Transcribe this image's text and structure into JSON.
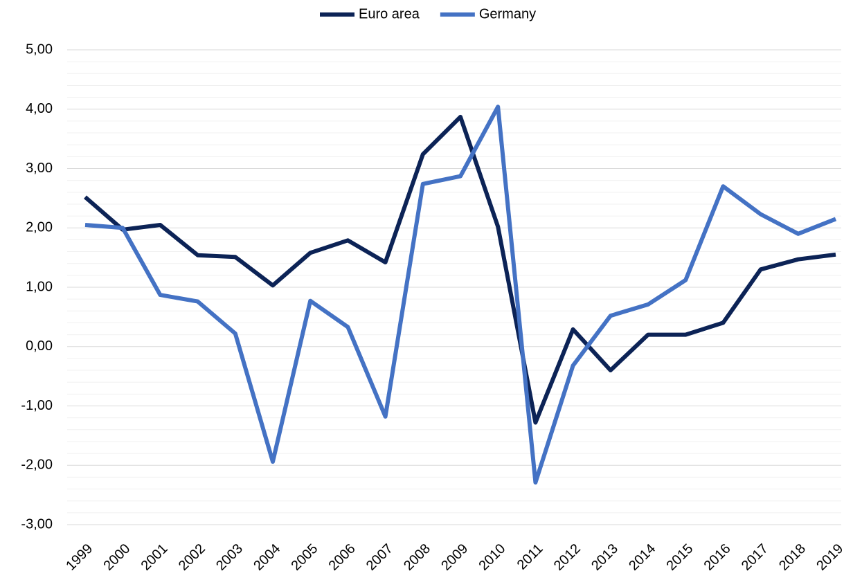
{
  "chart_data": {
    "type": "line",
    "categories": [
      "1999",
      "2000",
      "2001",
      "2002",
      "2003",
      "2004",
      "2005",
      "2006",
      "2007",
      "2008",
      "2009",
      "2010",
      "2011",
      "2012",
      "2013",
      "2014",
      "2015",
      "2016",
      "2017",
      "2018",
      "2019"
    ],
    "series": [
      {
        "name": "Euro area",
        "color": "#0c2356",
        "values": [
          2.52,
          1.97,
          2.05,
          1.54,
          1.51,
          1.03,
          1.58,
          1.79,
          1.42,
          3.24,
          3.87,
          2.02,
          -1.28,
          0.29,
          -0.4,
          0.2,
          0.2,
          0.4,
          1.3,
          1.47,
          1.55
        ]
      },
      {
        "name": "Germany",
        "color": "#4472c4",
        "values": [
          2.05,
          2.0,
          0.87,
          0.76,
          0.22,
          -1.94,
          0.77,
          0.33,
          -1.18,
          2.74,
          2.87,
          4.04,
          -2.29,
          -0.32,
          0.52,
          0.71,
          1.12,
          2.7,
          2.23,
          1.9,
          2.15
        ]
      }
    ],
    "ylim": [
      -3,
      5
    ],
    "yticks": [
      {
        "value": -3,
        "label": "-3,00"
      },
      {
        "value": -2,
        "label": "-2,00"
      },
      {
        "value": -1,
        "label": "-1,00"
      },
      {
        "value": 0,
        "label": "0,00"
      },
      {
        "value": 1,
        "label": "1,00"
      },
      {
        "value": 2,
        "label": "2,00"
      },
      {
        "value": 3,
        "label": "3,00"
      },
      {
        "value": 4,
        "label": "4,00"
      },
      {
        "value": 5,
        "label": "5,00"
      }
    ],
    "yminorticks": [
      -2.8,
      -2.6,
      -2.4,
      -2.2,
      -1.8,
      -1.6,
      -1.4,
      -1.2,
      -0.8,
      -0.6,
      -0.4,
      -0.2,
      0.2,
      0.4,
      0.6,
      0.8,
      1.2,
      1.4,
      1.6,
      1.8,
      2.2,
      2.4,
      2.6,
      2.8,
      3.2,
      3.4,
      3.6,
      3.8,
      4.2,
      4.4,
      4.6,
      4.8
    ],
    "grid": true,
    "legend": "top"
  }
}
